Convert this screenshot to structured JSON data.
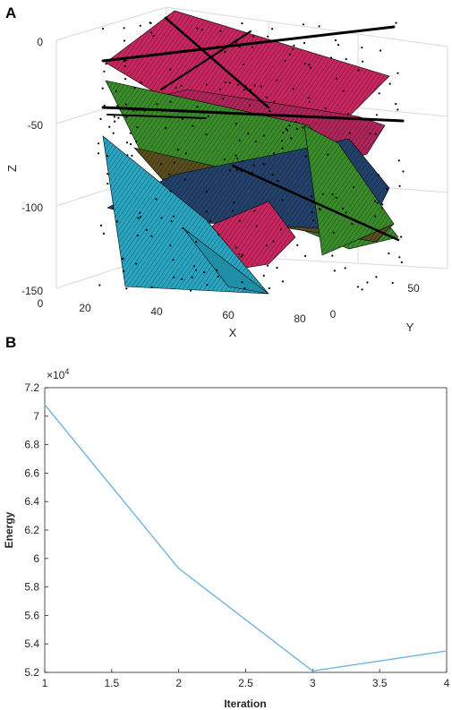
{
  "panel_a": {
    "letter": "A",
    "xlabel": "X",
    "ylabel": "Y",
    "zlabel": "Z",
    "z_ticks": [
      "0",
      "-50",
      "-100",
      "-150"
    ],
    "x_ticks": [
      "0",
      "20",
      "40",
      "60",
      "80"
    ],
    "y_ticks": [
      "0",
      "50"
    ],
    "colors": {
      "magenta": "#c8265e",
      "green": "#3a8c2a",
      "navy": "#23426b",
      "cyan": "#2aa6c2",
      "olive": "#5a4d1e"
    }
  },
  "panel_b": {
    "letter": "B",
    "exponent": "×10",
    "exponent_power": "4",
    "x_ticks": [
      "1",
      "1.5",
      "2",
      "2.5",
      "3",
      "3.5",
      "4"
    ],
    "y_ticks": [
      "5.2",
      "5.4",
      "5.6",
      "5.8",
      "6",
      "6.2",
      "6.4",
      "6.6",
      "6.8",
      "7",
      "7.2"
    ],
    "line_color": "#6fb3e0"
  },
  "chart_data": [
    {
      "type": "scatter",
      "title": "",
      "xlabel": "X",
      "ylabel": "Y",
      "zlabel": "Z",
      "xlim": [
        0,
        80
      ],
      "ylim": [
        0,
        70
      ],
      "zlim": [
        -150,
        0
      ],
      "grid": true
    },
    {
      "type": "line",
      "title": "",
      "xlabel": "Iteration",
      "ylabel": "Energy",
      "x": [
        1,
        2,
        3,
        4
      ],
      "series": [
        {
          "values": [
            70800,
            59300,
            52100,
            53500
          ]
        }
      ],
      "xlim": [
        1,
        4
      ],
      "ylim": [
        52000,
        72000
      ],
      "y_scale_label": "×10^4",
      "grid": false
    }
  ]
}
